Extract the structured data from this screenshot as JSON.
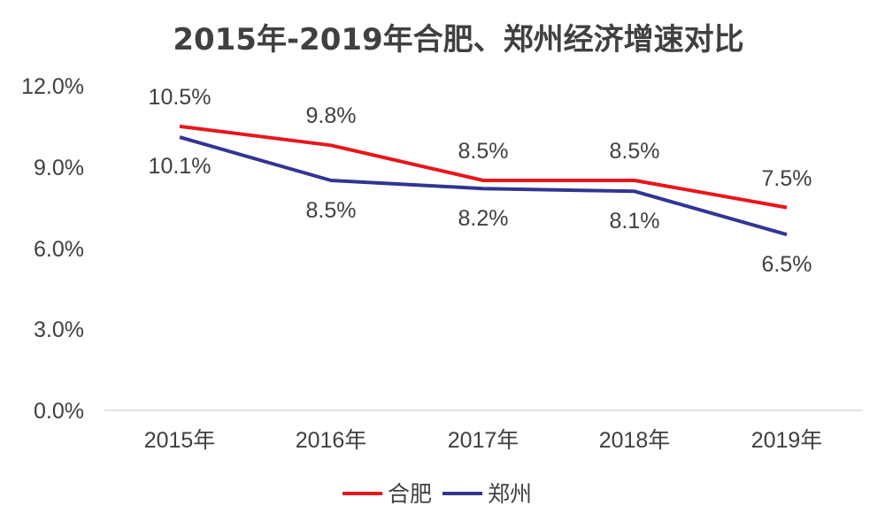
{
  "chart_data": {
    "type": "line",
    "title": "2015年-2019年合肥、郑州经济增速对比",
    "x": [
      "2015年",
      "2016年",
      "2017年",
      "2018年",
      "2019年"
    ],
    "y_ticks": [
      "0.0%",
      "3.0%",
      "6.0%",
      "9.0%",
      "12.0%"
    ],
    "ylim": [
      0,
      12
    ],
    "grid": false,
    "legend_position": "bottom",
    "series": [
      {
        "name": "合肥",
        "color": "#e8161c",
        "values": [
          10.5,
          9.8,
          8.5,
          8.5,
          7.5
        ],
        "labels": [
          "10.5%",
          "9.8%",
          "8.5%",
          "8.5%",
          "7.5%"
        ]
      },
      {
        "name": "郑州",
        "color": "#323592",
        "values": [
          10.1,
          8.5,
          8.2,
          8.1,
          6.5
        ],
        "labels": [
          "10.1%",
          "8.5%",
          "8.2%",
          "8.1%",
          "6.5%"
        ]
      }
    ]
  }
}
